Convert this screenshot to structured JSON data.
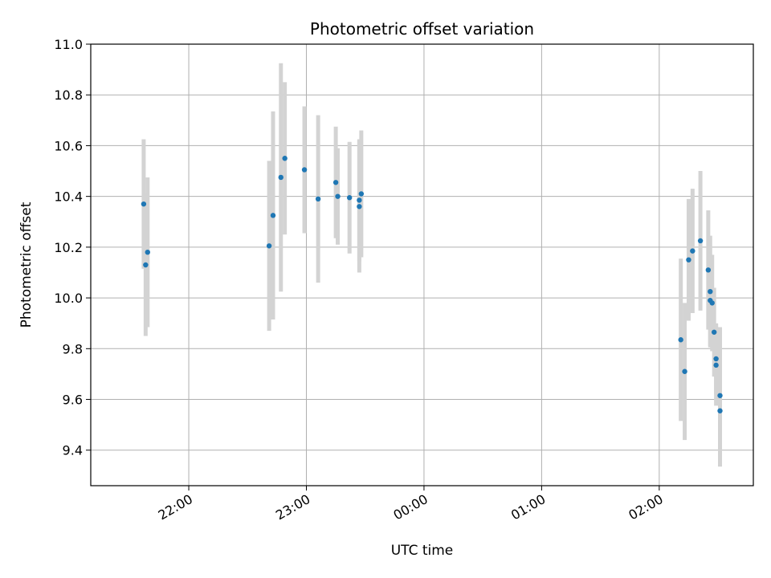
{
  "chart_data": {
    "type": "scatter",
    "title": "Photometric offset variation",
    "xlabel": "UTC time",
    "ylabel": "Photometric offset",
    "x_axis_kind": "time",
    "xlim": [
      "21:10",
      "02:48"
    ],
    "ylim": [
      9.26,
      11.0
    ],
    "x_ticks": [
      "22:00",
      "23:00",
      "00:00",
      "01:00",
      "02:00"
    ],
    "y_ticks": [
      9.4,
      9.6,
      9.8,
      10.0,
      10.2,
      10.4,
      10.6,
      10.8,
      11.0
    ],
    "grid": true,
    "colors": {
      "marker": "#1f77b4",
      "errorbar": "#d3d3d3",
      "grid": "#b0b0b0"
    },
    "series": [
      {
        "points": [
          {
            "x": "21:37",
            "y": 10.37,
            "err": 0.255
          },
          {
            "x": "21:38",
            "y": 10.13,
            "err": 0.28
          },
          {
            "x": "21:39",
            "y": 10.18,
            "err": 0.295
          },
          {
            "x": "22:41",
            "y": 10.205,
            "err": 0.335
          },
          {
            "x": "22:43",
            "y": 10.325,
            "err": 0.41
          },
          {
            "x": "22:47",
            "y": 10.475,
            "err": 0.45
          },
          {
            "x": "22:49",
            "y": 10.55,
            "err": 0.3
          },
          {
            "x": "22:59",
            "y": 10.505,
            "err": 0.25
          },
          {
            "x": "23:06",
            "y": 10.39,
            "err": 0.33
          },
          {
            "x": "23:15",
            "y": 10.455,
            "err": 0.22
          },
          {
            "x": "23:16",
            "y": 10.4,
            "err": 0.19
          },
          {
            "x": "23:22",
            "y": 10.395,
            "err": 0.22
          },
          {
            "x": "23:27",
            "y": 10.36,
            "err": 0.26
          },
          {
            "x": "23:27",
            "y": 10.385,
            "err": 0.24
          },
          {
            "x": "23:28",
            "y": 10.41,
            "err": 0.25
          },
          {
            "x": "02:11",
            "y": 9.835,
            "err": 0.32
          },
          {
            "x": "02:13",
            "y": 9.71,
            "err": 0.27
          },
          {
            "x": "02:15",
            "y": 10.15,
            "err": 0.24
          },
          {
            "x": "02:17",
            "y": 10.185,
            "err": 0.245
          },
          {
            "x": "02:21",
            "y": 10.225,
            "err": 0.275
          },
          {
            "x": "02:25",
            "y": 10.11,
            "err": 0.235
          },
          {
            "x": "02:26",
            "y": 10.025,
            "err": 0.22
          },
          {
            "x": "02:26",
            "y": 9.99,
            "err": 0.18
          },
          {
            "x": "02:27",
            "y": 9.98,
            "err": 0.19
          },
          {
            "x": "02:28",
            "y": 9.865,
            "err": 0.175
          },
          {
            "x": "02:29",
            "y": 9.76,
            "err": 0.14
          },
          {
            "x": "02:29",
            "y": 9.735,
            "err": 0.16
          },
          {
            "x": "02:31",
            "y": 9.615,
            "err": 0.27
          },
          {
            "x": "02:31",
            "y": 9.555,
            "err": 0.22
          }
        ]
      }
    ]
  }
}
